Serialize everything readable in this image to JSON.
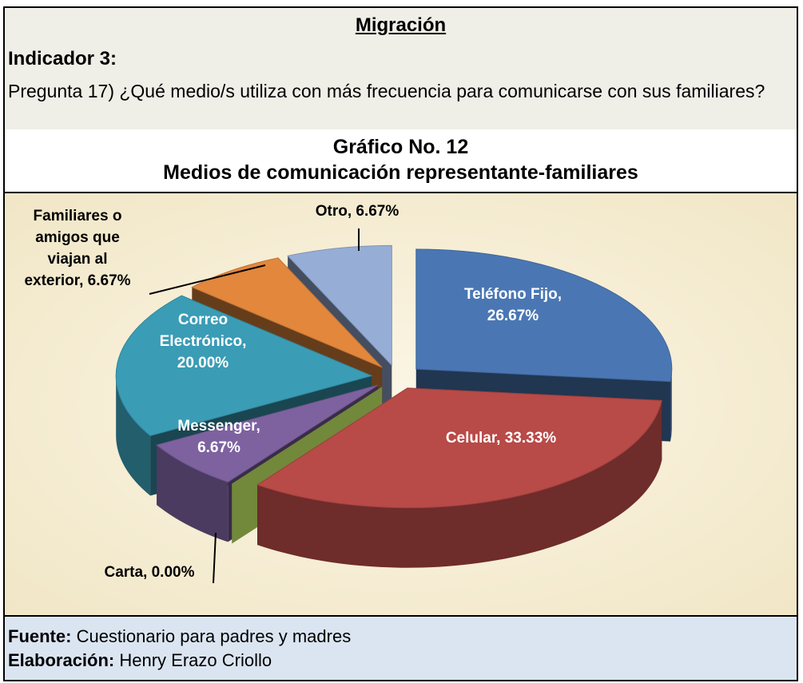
{
  "header": {
    "title": "Migración",
    "indicator": "Indicador 3:",
    "question": "Pregunta 17) ¿Qué medio/s utiliza con más frecuencia para comunicarse con sus familiares?"
  },
  "chart_data": {
    "type": "pie",
    "title": "Gráfico No. 12",
    "subtitle": "Medios de comunicación representante-familiares",
    "values": [
      26.67,
      33.33,
      0.0,
      6.67,
      20.0,
      6.67,
      6.67
    ],
    "value_labels": [
      [
        "Teléfono Fijo,",
        "26.67%"
      ],
      [
        "Celular, 33.33%"
      ],
      [
        "Carta, 0.00%"
      ],
      [
        "Messenger,",
        "6.67%"
      ],
      [
        "Correo",
        "Electrónico,",
        "20.00%"
      ],
      [
        "Familiares o",
        "amigos que",
        "viajan al",
        "exterior, 6.67%"
      ],
      [
        "Otro, 6.67%"
      ]
    ],
    "colors": [
      "#4a77b4",
      "#b84a47",
      "#8faa4a",
      "#7e62a0",
      "#3a9cb5",
      "#e2873c",
      "#96aed6"
    ]
  },
  "footer": {
    "source_label": "Fuente:",
    "source": "Cuestionario para padres y madres",
    "author_label": "Elaboración:",
    "author": "Henry Erazo Criollo"
  }
}
